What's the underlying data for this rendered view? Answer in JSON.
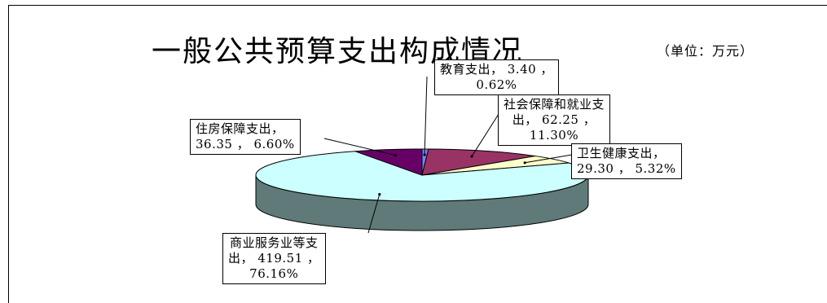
{
  "chart_data": {
    "type": "pie",
    "title": "一般公共预算支出构成情况",
    "unit_note": "（单位：万元）",
    "slices": [
      {
        "name": "教育支出",
        "value": 3.4,
        "percent": 0.62,
        "color": "#8080ff",
        "label_lines": [
          "教育支出， 3.40 ，",
          "0.62%"
        ]
      },
      {
        "name": "社会保障和就业支出",
        "value": 62.25,
        "percent": 11.3,
        "color": "#993366",
        "label_lines": [
          "社会保障和就业支",
          "出， 62.25 ，",
          "11.30%"
        ]
      },
      {
        "name": "卫生健康支出",
        "value": 29.3,
        "percent": 5.32,
        "color": "#ffffcc",
        "label_lines": [
          "卫生健康支出，",
          "29.30 ， 5.32%"
        ]
      },
      {
        "name": "商业服务业等支出",
        "value": 419.51,
        "percent": 76.16,
        "color": "#ccffff",
        "label_lines": [
          "商业服务业等支",
          "出， 419.51 ，",
          "76.16%"
        ]
      },
      {
        "name": "住房保障支出",
        "value": 36.35,
        "percent": 6.6,
        "color": "#660066",
        "label_lines": [
          "住房保障支出，",
          "36.35 ， 6.60%"
        ]
      }
    ],
    "start_angle_deg": -90,
    "legend": "none",
    "style": "3d-pie"
  }
}
